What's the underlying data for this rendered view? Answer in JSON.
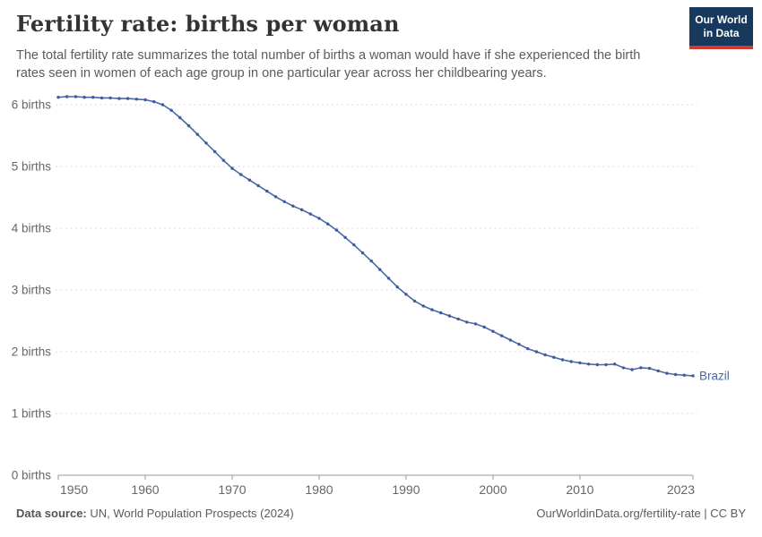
{
  "header": {
    "title": "Fertility rate: births per woman",
    "subtitle": "The total fertility rate summarizes the total number of births a woman would have if she experienced the birth rates seen in women of each age group in one particular year across her childbearing years.",
    "logo": {
      "line1": "Our World",
      "line2": "in Data"
    }
  },
  "chart_data": {
    "type": "line",
    "title": "Fertility rate: births per woman",
    "entity": "Brazil",
    "xlim": [
      1950,
      2023
    ],
    "ylim": [
      0,
      6.2
    ],
    "grid": "horizontal-dashed",
    "legend_position": "end-of-line-label",
    "x_ticks": [
      1950,
      1960,
      1970,
      1980,
      1990,
      2000,
      2010,
      2023
    ],
    "x_tick_labels": [
      "1950",
      "1960",
      "1970",
      "1980",
      "1990",
      "2000",
      "2010",
      "2023"
    ],
    "y_ticks": [
      0,
      1,
      2,
      3,
      4,
      5,
      6
    ],
    "y_tick_labels": [
      "0 births",
      "1 births",
      "2 births",
      "3 births",
      "4 births",
      "5 births",
      "6 births"
    ],
    "x": [
      1950,
      1951,
      1952,
      1953,
      1954,
      1955,
      1956,
      1957,
      1958,
      1959,
      1960,
      1961,
      1962,
      1963,
      1964,
      1965,
      1966,
      1967,
      1968,
      1969,
      1970,
      1971,
      1972,
      1973,
      1974,
      1975,
      1976,
      1977,
      1978,
      1979,
      1980,
      1981,
      1982,
      1983,
      1984,
      1985,
      1986,
      1987,
      1988,
      1989,
      1990,
      1991,
      1992,
      1993,
      1994,
      1995,
      1996,
      1997,
      1998,
      1999,
      2000,
      2001,
      2002,
      2003,
      2004,
      2005,
      2006,
      2007,
      2008,
      2009,
      2010,
      2011,
      2012,
      2013,
      2014,
      2015,
      2016,
      2017,
      2018,
      2019,
      2020,
      2021,
      2022,
      2023
    ],
    "series": [
      {
        "name": "Brazil",
        "values": [
          6.12,
          6.13,
          6.13,
          6.12,
          6.12,
          6.11,
          6.11,
          6.1,
          6.1,
          6.09,
          6.08,
          6.05,
          6.0,
          5.91,
          5.79,
          5.66,
          5.52,
          5.38,
          5.24,
          5.1,
          4.97,
          4.87,
          4.78,
          4.69,
          4.6,
          4.51,
          4.43,
          4.36,
          4.3,
          4.23,
          4.16,
          4.07,
          3.97,
          3.85,
          3.73,
          3.6,
          3.47,
          3.33,
          3.19,
          3.05,
          2.93,
          2.82,
          2.74,
          2.68,
          2.63,
          2.58,
          2.53,
          2.48,
          2.45,
          2.4,
          2.33,
          2.26,
          2.19,
          2.12,
          2.05,
          2.0,
          1.95,
          1.91,
          1.87,
          1.84,
          1.82,
          1.8,
          1.79,
          1.79,
          1.8,
          1.74,
          1.71,
          1.74,
          1.73,
          1.69,
          1.65,
          1.63,
          1.62,
          1.61
        ]
      }
    ]
  },
  "footer": {
    "source_label": "Data source:",
    "source_value": " UN, World Population Prospects (2024)",
    "link": "OurWorldinData.org/fertility-rate | CC BY"
  },
  "colors": {
    "line": "#4A67A8",
    "dot": "#3E5B9C",
    "grid": "#dcdcdc",
    "axis": "#9a9a9a",
    "tick_text": "#666666",
    "logo_navy": "#17395d",
    "logo_red": "#d23b2e",
    "title_text": "#333333",
    "subtitle_text": "#5b5b5b"
  }
}
